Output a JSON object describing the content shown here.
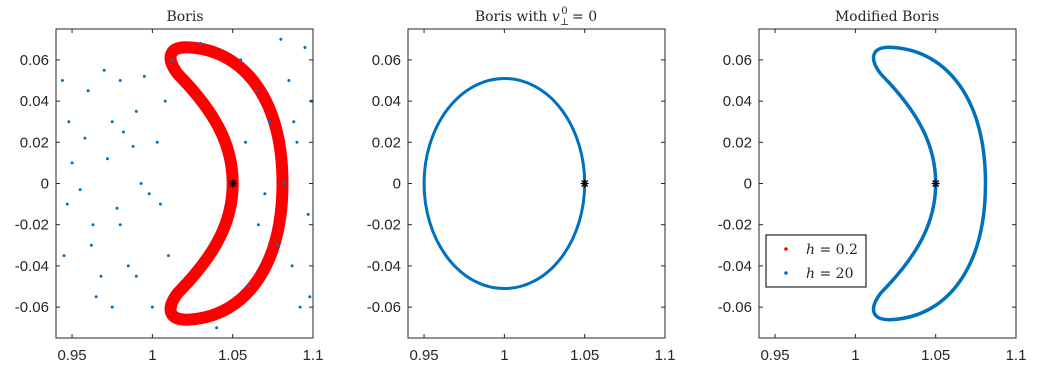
{
  "chart_data": [
    {
      "type": "scatter",
      "title": "Boris",
      "xlim": [
        0.94,
        1.1
      ],
      "ylim": [
        -0.075,
        0.075
      ],
      "xticks": [
        0.95,
        1,
        1.05,
        1.1
      ],
      "xtick_labels": [
        "0.95",
        "1",
        "1.05",
        "1.1"
      ],
      "yticks": [
        0.06,
        0.04,
        0.02,
        0,
        -0.02,
        -0.04,
        -0.06
      ],
      "ytick_labels": [
        "0.06",
        "0.04",
        "0.02",
        "0",
        "-0.02",
        "-0.04",
        "-0.06"
      ],
      "start_point": [
        1.05,
        0
      ],
      "series": [
        {
          "name": "h = 0.2",
          "color": "#ff0000",
          "shape": "thick crescent",
          "points": [
            [
              1.05,
              0
            ],
            [
              1.062,
              0.03
            ],
            [
              1.048,
              0.06
            ],
            [
              1.02,
              0.065
            ],
            [
              1.015,
              0.055
            ],
            [
              1.035,
              0.03
            ],
            [
              1.045,
              0
            ],
            [
              1.035,
              -0.03
            ],
            [
              1.015,
              -0.055
            ],
            [
              1.02,
              -0.065
            ],
            [
              1.048,
              -0.06
            ],
            [
              1.062,
              -0.03
            ]
          ]
        },
        {
          "name": "h = 20",
          "color": "#0072bd",
          "shape": "scattered points",
          "points": [
            [
              0.944,
              0.05
            ],
            [
              0.948,
              0.03
            ],
            [
              0.95,
              0.01
            ],
            [
              0.955,
              -0.003
            ],
            [
              0.958,
              0.022
            ],
            [
              0.962,
              -0.03
            ],
            [
              0.965,
              -0.055
            ],
            [
              0.97,
              0.055
            ],
            [
              0.972,
              0.012
            ],
            [
              0.975,
              0.03
            ],
            [
              0.978,
              -0.012
            ],
            [
              0.98,
              0.05
            ],
            [
              0.982,
              0.025
            ],
            [
              0.985,
              -0.04
            ],
            [
              0.99,
              -0.045
            ],
            [
              0.993,
              0.0
            ],
            [
              0.995,
              0.052
            ],
            [
              0.945,
              -0.035
            ],
            [
              0.947,
              -0.01
            ],
            [
              0.96,
              0.045
            ],
            [
              0.963,
              -0.02
            ],
            [
              0.968,
              -0.045
            ],
            [
              0.975,
              -0.06
            ],
            [
              0.98,
              -0.02
            ],
            [
              0.988,
              0.018
            ],
            [
              0.99,
              0.035
            ],
            [
              0.998,
              -0.005
            ],
            [
              1.0,
              -0.06
            ],
            [
              1.003,
              0.02
            ],
            [
              1.005,
              -0.01
            ],
            [
              1.008,
              0.04
            ],
            [
              1.01,
              -0.035
            ],
            [
              1.012,
              0.06
            ],
            [
              1.03,
              0.068
            ],
            [
              1.04,
              -0.07
            ],
            [
              1.055,
              0.06
            ],
            [
              1.06,
              -0.05
            ],
            [
              1.065,
              0.045
            ],
            [
              1.07,
              -0.005
            ],
            [
              1.073,
              0.03
            ],
            [
              1.078,
              -0.03
            ],
            [
              1.08,
              0.07
            ],
            [
              1.082,
              0.0
            ],
            [
              1.085,
              0.05
            ],
            [
              1.087,
              -0.04
            ],
            [
              1.09,
              0.02
            ],
            [
              1.092,
              -0.06
            ],
            [
              1.095,
              0.066
            ],
            [
              1.097,
              -0.015
            ],
            [
              1.099,
              0.04
            ],
            [
              1.098,
              -0.055
            ],
            [
              1.058,
              0.02
            ],
            [
              1.066,
              -0.02
            ],
            [
              1.088,
              0.03
            ]
          ]
        }
      ]
    },
    {
      "type": "line",
      "title": "Boris with v_⊥^0 = 0",
      "xlim": [
        0.94,
        1.1
      ],
      "ylim": [
        -0.075,
        0.075
      ],
      "xticks": [
        0.95,
        1,
        1.05,
        1.1
      ],
      "xtick_labels": [
        "0.95",
        "1",
        "1.05",
        "1.1"
      ],
      "yticks": [
        0.06,
        0.04,
        0.02,
        0,
        -0.02,
        -0.04,
        -0.06
      ],
      "ytick_labels": [
        "0.06",
        "0.04",
        "0.02",
        "0",
        "-0.02",
        "-0.04",
        "-0.06"
      ],
      "start_point": [
        1.05,
        0
      ],
      "series": [
        {
          "name": "h = 20",
          "color": "#0072bd",
          "shape": "ellipse",
          "center": [
            1.0,
            0.0
          ],
          "radius_x": 0.05,
          "radius_y": 0.051
        }
      ]
    },
    {
      "type": "line",
      "title": "Modified Boris",
      "xlim": [
        0.94,
        1.1
      ],
      "ylim": [
        -0.075,
        0.075
      ],
      "xticks": [
        0.95,
        1,
        1.05,
        1.1
      ],
      "xtick_labels": [
        "0.95",
        "1",
        "1.05",
        "1.1"
      ],
      "yticks": [
        0.06,
        0.04,
        0.02,
        0,
        -0.02,
        -0.04,
        -0.06
      ],
      "ytick_labels": [
        "0.06",
        "0.04",
        "0.02",
        "0",
        "-0.02",
        "-0.04",
        "-0.06"
      ],
      "start_point": [
        1.05,
        0
      ],
      "legend": {
        "placement": "lower-left",
        "entries": [
          {
            "label": "h = 0.2",
            "color": "#ff0000"
          },
          {
            "label": "h = 20",
            "color": "#0072bd"
          }
        ]
      },
      "series": [
        {
          "name": "h = 20",
          "color": "#0072bd",
          "shape": "thin crescent",
          "points": [
            [
              1.05,
              0
            ],
            [
              1.062,
              0.03
            ],
            [
              1.048,
              0.06
            ],
            [
              1.02,
              0.065
            ],
            [
              1.015,
              0.055
            ],
            [
              1.035,
              0.03
            ],
            [
              1.045,
              0
            ],
            [
              1.035,
              -0.03
            ],
            [
              1.015,
              -0.055
            ],
            [
              1.02,
              -0.065
            ],
            [
              1.048,
              -0.06
            ],
            [
              1.062,
              -0.03
            ]
          ]
        }
      ]
    }
  ],
  "legend_labels": {
    "h1_var": "h",
    "h1_value": " = 0.2",
    "h2_var": "h",
    "h2_value": " = 20"
  },
  "title_parts": {
    "boris": "Boris",
    "boris_v_prefix": "Boris with ",
    "boris_v_var": "v",
    "boris_v_sub": "⊥",
    "boris_v_sup": "0",
    "boris_v_suffix": " = 0",
    "modified": "Modified Boris"
  }
}
